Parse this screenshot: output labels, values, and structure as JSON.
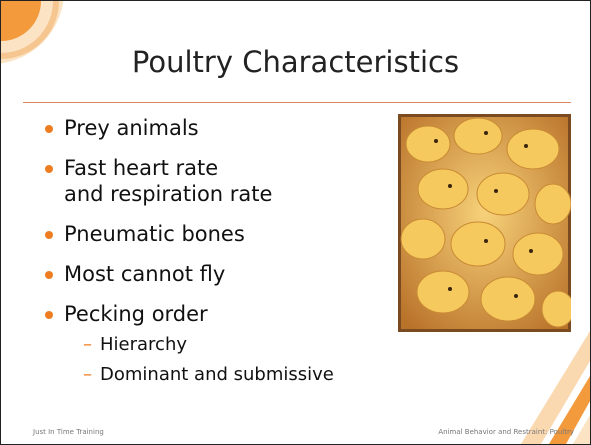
{
  "slide": {
    "title": "Poultry Characteristics",
    "bullets": [
      {
        "lines": [
          "Prey animals"
        ]
      },
      {
        "lines": [
          "Fast heart rate",
          "and respiration rate"
        ]
      },
      {
        "lines": [
          "Pneumatic bones"
        ]
      },
      {
        "lines": [
          "Most cannot fly"
        ]
      },
      {
        "lines": [
          "Pecking order"
        ],
        "sub": [
          "Hierarchy",
          "Dominant and submissive"
        ]
      }
    ],
    "footer": {
      "left": "Just In Time Training",
      "right": "Animal Behavior and Restraint: Poultry"
    }
  }
}
